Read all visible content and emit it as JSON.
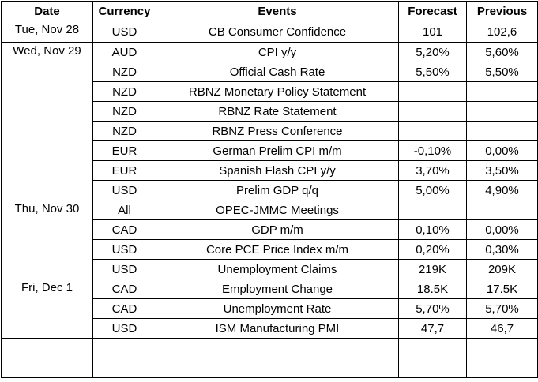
{
  "headers": [
    "Date",
    "Currency",
    "Events",
    "Forecast",
    "Previous"
  ],
  "groups": [
    {
      "date": "Tue, Nov 28",
      "rows": [
        {
          "currency": "USD",
          "event": "CB Consumer Confidence",
          "forecast": "101",
          "previous": "102,6"
        }
      ]
    },
    {
      "date": "Wed, Nov 29",
      "rows": [
        {
          "currency": "AUD",
          "event": "CPI y/y",
          "forecast": "5,20%",
          "previous": "5,60%"
        },
        {
          "currency": "NZD",
          "event": "Official Cash Rate",
          "forecast": "5,50%",
          "previous": "5,50%"
        },
        {
          "currency": "NZD",
          "event": "RBNZ Monetary Policy Statement",
          "forecast": "",
          "previous": ""
        },
        {
          "currency": "NZD",
          "event": "RBNZ Rate Statement",
          "forecast": "",
          "previous": ""
        },
        {
          "currency": "NZD",
          "event": "RBNZ Press Conference",
          "forecast": "",
          "previous": ""
        },
        {
          "currency": "EUR",
          "event": "German Prelim CPI m/m",
          "forecast": "-0,10%",
          "previous": "0,00%"
        },
        {
          "currency": "EUR",
          "event": "Spanish Flash CPI y/y",
          "forecast": "3,70%",
          "previous": "3,50%"
        },
        {
          "currency": "USD",
          "event": "Prelim GDP q/q",
          "forecast": "5,00%",
          "previous": "4,90%"
        }
      ]
    },
    {
      "date": "Thu, Nov 30",
      "rows": [
        {
          "currency": "All",
          "event": "OPEC-JMMC Meetings",
          "forecast": "",
          "previous": ""
        },
        {
          "currency": "CAD",
          "event": "GDP m/m",
          "forecast": "0,10%",
          "previous": "0,00%"
        },
        {
          "currency": "USD",
          "event": "Core PCE Price Index m/m",
          "forecast": "0,20%",
          "previous": "0,30%"
        },
        {
          "currency": "USD",
          "event": "Unemployment Claims",
          "forecast": "219K",
          "previous": "209K"
        }
      ]
    },
    {
      "date": "Fri, Dec 1",
      "rows": [
        {
          "currency": "CAD",
          "event": "Employment Change",
          "forecast": "18.5K",
          "previous": "17.5K"
        },
        {
          "currency": "CAD",
          "event": "Unemployment Rate",
          "forecast": "5,70%",
          "previous": "5,70%"
        },
        {
          "currency": "USD",
          "event": "ISM Manufacturing PMI",
          "forecast": "47,7",
          "previous": "46,7"
        }
      ]
    }
  ],
  "empty_rows": 2
}
